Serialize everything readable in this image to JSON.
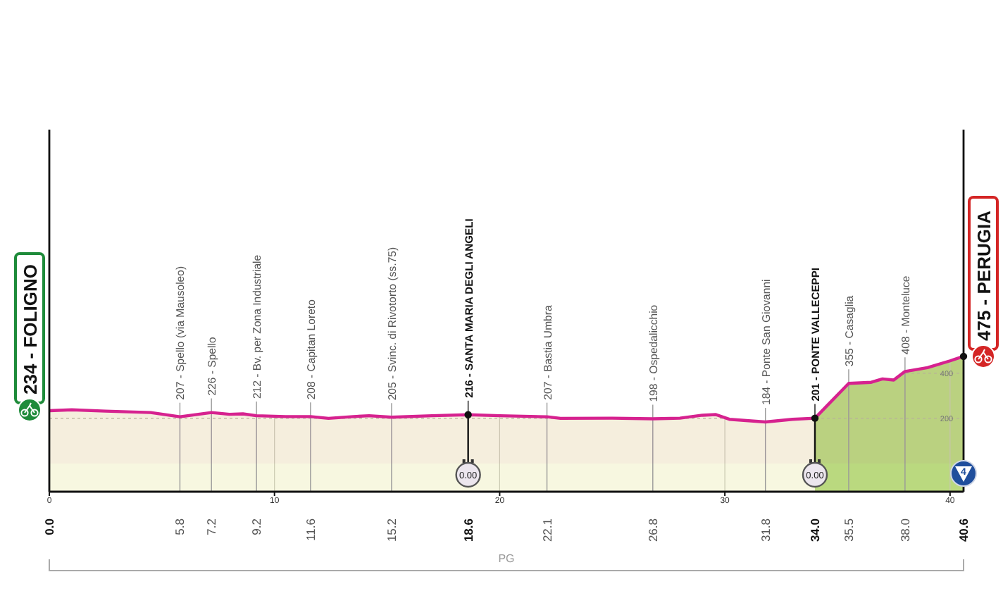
{
  "chart_data": {
    "type": "area",
    "x": [
      0,
      1,
      2.5,
      4.5,
      5.8,
      7.2,
      8,
      8.6,
      9.2,
      10.5,
      11.6,
      12.4,
      13.5,
      14.2,
      15.2,
      17,
      18.6,
      20,
      22.1,
      22.7,
      25,
      26.8,
      28,
      29,
      29.6,
      30.2,
      31.8,
      33,
      34,
      35.5,
      36.5,
      37,
      37.5,
      38,
      39,
      40,
      40.6
    ],
    "series": [
      {
        "color": "#d6228f",
        "values": [
          234,
          238,
          232,
          226,
          207,
          226,
          218,
          220,
          212,
          208,
          208,
          200,
          208,
          212,
          205,
          212,
          216,
          212,
          207,
          200,
          201,
          198,
          201,
          214,
          217,
          196,
          184,
          196,
          201,
          355,
          360,
          375,
          370,
          408,
          425,
          455,
          475
        ]
      }
    ],
    "xlim": [
      0,
      40.6
    ],
    "xticks": [
      0,
      10,
      20,
      30,
      40
    ],
    "x2lim": [
      0,
      40.6
    ],
    "x2ticks": [
      {
        "value": 0,
        "label": "0.0"
      },
      5.8,
      7.2,
      9.2,
      11.6,
      15.2,
      18.6,
      22.1,
      26.8,
      31.8,
      {
        "value": 34,
        "label": "34.0"
      },
      35.5,
      {
        "value": 38,
        "label": "38.0"
      },
      40.6
    ],
    "ylim": [
      -125,
      1480
    ],
    "yticks": [
      200,
      400
    ],
    "grid": true,
    "bands": [
      {
        "axis": "x",
        "from": 0,
        "to": 34,
        "color": "#f7f7e0"
      },
      {
        "axis": "x",
        "from": 34,
        "to": 40.6,
        "color": "#bad97f"
      }
    ],
    "ref_lines": [
      {
        "axis": "x",
        "value": 18.6
      },
      {
        "axis": "x",
        "value": 34
      }
    ],
    "annotations": [
      {
        "text": "234 - FOLIGNO",
        "x": 0,
        "y": 234
      },
      {
        "text": "207 - Spello (via Mausoleo)",
        "x": 5.8,
        "y": 207
      },
      {
        "text": "226 - Spello",
        "x": 7.2,
        "y": 226
      },
      {
        "text": "212 - Bv. per Zona Industriale",
        "x": 9.2,
        "y": 212
      },
      {
        "text": "208 - Capitan Loreto",
        "x": 11.6,
        "y": 208
      },
      {
        "text": "205 - Svinc. di Rivotorto (ss.75)",
        "x": 15.2,
        "y": 205
      },
      {
        "text": "216 - SANTA MARIA DEGLI ANGELI",
        "x": 18.6,
        "y": 216
      },
      {
        "text": "207 - Bastia Umbra",
        "x": 22.1,
        "y": 207
      },
      {
        "text": "198 - Ospedalicchio",
        "x": 26.8,
        "y": 198
      },
      {
        "text": "184 - Ponte San Giovanni",
        "x": 31.8,
        "y": 184
      },
      {
        "text": "201 - PONTE VALLECEPPI",
        "x": 34,
        "y": 201
      },
      {
        "text": "355 - Casaglia",
        "x": 35.5,
        "y": 355
      },
      {
        "text": "408 - Monteluce",
        "x": 38,
        "y": 408
      },
      {
        "text": "475 - PERUGIA",
        "x": 40.6,
        "y": 475
      },
      {
        "text": "0.00",
        "x": 18.6
      },
      {
        "text": "0.00",
        "x": 34
      },
      {
        "text": "4",
        "x": 40.6
      },
      "PG"
    ]
  }
}
